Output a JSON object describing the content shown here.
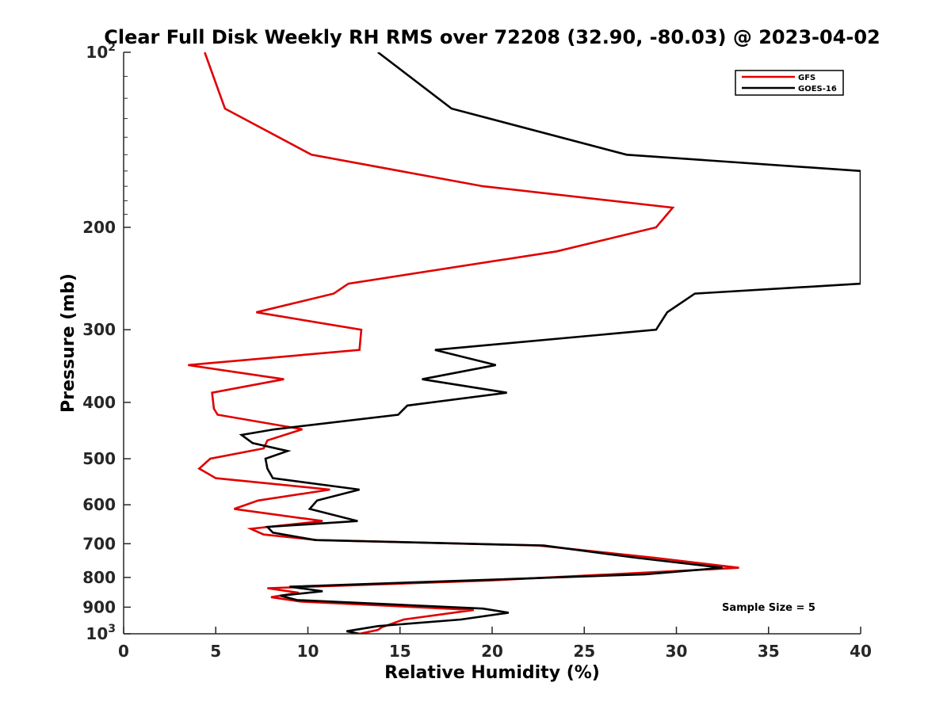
{
  "chart_data": {
    "type": "line",
    "title": "Clear Full Disk Weekly RH RMS over 72208 (32.90, -80.03) @ 2023-04-02",
    "xlabel": "Relative Humidity (%)",
    "ylabel": "Pressure (mb)",
    "xlim": [
      0,
      40
    ],
    "ylim": [
      100,
      1000
    ],
    "y_scale": "log",
    "y_reversed": true,
    "x_ticks": [
      "0",
      "5",
      "10",
      "15",
      "20",
      "25",
      "30",
      "35",
      "40"
    ],
    "y_ticks": [
      {
        "value": 100,
        "base": "10",
        "exp": "2"
      },
      {
        "value": 200,
        "label": "200"
      },
      {
        "value": 300,
        "label": "300"
      },
      {
        "value": 400,
        "label": "400"
      },
      {
        "value": 500,
        "label": "500"
      },
      {
        "value": 600,
        "label": "600"
      },
      {
        "value": 700,
        "label": "700"
      },
      {
        "value": 800,
        "label": "800"
      },
      {
        "value": 900,
        "label": "900"
      },
      {
        "value": 1000,
        "base": "10",
        "exp": "3"
      }
    ],
    "legend_position": "top-right",
    "grid": false,
    "annotation": "Sample Size = 5",
    "series": [
      {
        "name": "GFS",
        "color": "#e00000",
        "points": [
          [
            4.4,
            100
          ],
          [
            5.5,
            125
          ],
          [
            10.2,
            150
          ],
          [
            19.5,
            170
          ],
          [
            29.8,
            185
          ],
          [
            28.9,
            200
          ],
          [
            23.5,
            220
          ],
          [
            12.2,
            250
          ],
          [
            11.4,
            260
          ],
          [
            7.2,
            280
          ],
          [
            12.9,
            300
          ],
          [
            12.8,
            325
          ],
          [
            3.5,
            345
          ],
          [
            8.7,
            365
          ],
          [
            4.8,
            385
          ],
          [
            4.9,
            410
          ],
          [
            5.1,
            420
          ],
          [
            9.7,
            445
          ],
          [
            7.8,
            465
          ],
          [
            7.6,
            480
          ],
          [
            4.7,
            500
          ],
          [
            4.1,
            520
          ],
          [
            5.0,
            540
          ],
          [
            11.2,
            565
          ],
          [
            7.3,
            590
          ],
          [
            6.0,
            610
          ],
          [
            10.8,
            640
          ],
          [
            6.9,
            660
          ],
          [
            7.6,
            675
          ],
          [
            10.5,
            690
          ],
          [
            22.5,
            705
          ],
          [
            28.8,
            740
          ],
          [
            33.4,
            770
          ],
          [
            19.8,
            810
          ],
          [
            7.8,
            835
          ],
          [
            9.5,
            850
          ],
          [
            8.0,
            865
          ],
          [
            9.6,
            880
          ],
          [
            19.0,
            910
          ],
          [
            15.2,
            945
          ],
          [
            14.0,
            975
          ],
          [
            13.8,
            985
          ],
          [
            12.8,
            1000
          ]
        ]
      },
      {
        "name": "GOES-16",
        "color": "#000000",
        "points": [
          [
            13.8,
            100
          ],
          [
            17.8,
            125
          ],
          [
            27.3,
            150
          ],
          [
            40.0,
            160
          ],
          [
            40.0,
            250
          ],
          [
            31.0,
            260
          ],
          [
            29.5,
            280
          ],
          [
            28.9,
            300
          ],
          [
            16.9,
            325
          ],
          [
            20.2,
            345
          ],
          [
            16.2,
            365
          ],
          [
            20.8,
            385
          ],
          [
            15.4,
            405
          ],
          [
            14.9,
            420
          ],
          [
            8.2,
            445
          ],
          [
            6.4,
            455
          ],
          [
            7.0,
            470
          ],
          [
            8.9,
            485
          ],
          [
            7.7,
            500
          ],
          [
            7.8,
            520
          ],
          [
            8.1,
            540
          ],
          [
            12.8,
            565
          ],
          [
            10.5,
            590
          ],
          [
            10.1,
            610
          ],
          [
            12.7,
            640
          ],
          [
            7.8,
            655
          ],
          [
            8.1,
            670
          ],
          [
            10.4,
            690
          ],
          [
            22.8,
            705
          ],
          [
            27.8,
            740
          ],
          [
            32.5,
            770
          ],
          [
            28.3,
            790
          ],
          [
            9.0,
            830
          ],
          [
            10.8,
            845
          ],
          [
            8.5,
            860
          ],
          [
            9.4,
            875
          ],
          [
            19.5,
            905
          ],
          [
            20.9,
            920
          ],
          [
            18.3,
            945
          ],
          [
            13.8,
            970
          ],
          [
            12.1,
            990
          ],
          [
            12.8,
            1000
          ]
        ]
      }
    ]
  }
}
